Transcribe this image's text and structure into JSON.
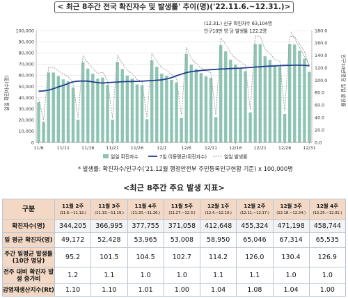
{
  "banner": {
    "title": "< 최근 8주간 전국 확진자수 및 발생률' 추이(명)('22.11.6.~12.31.)>"
  },
  "chart_data": {
    "type": "bar",
    "left_axis": {
      "label": "일일 확진자수(명)",
      "ticks": [
        "0",
        "10,000",
        "20,000",
        "30,000",
        "40,000",
        "50,000",
        "60,000",
        "70,000",
        "80,000",
        "90,000",
        "100,000"
      ],
      "ylim": [
        0,
        100000
      ]
    },
    "right_axis": {
      "label": "인구10만명당 일일 발생률",
      "ticks": [
        "0.0",
        "20.0",
        "40.0",
        "60.0",
        "80.0",
        "100.0",
        "120.0",
        "140.0",
        "160.0",
        "180.0"
      ],
      "ylim": [
        0,
        180
      ]
    },
    "x_tick_labels": [
      "11/6",
      "11/11",
      "11/16",
      "11/21",
      "11/26",
      "12/1",
      "12/6",
      "12/11",
      "12/16",
      "12/21",
      "12/26",
      "12/31"
    ],
    "x_tick_index": [
      0,
      5,
      10,
      15,
      20,
      25,
      30,
      35,
      40,
      45,
      50,
      55
    ],
    "bars_daily_cases": [
      36000,
      18500,
      62500,
      62500,
      59200,
      56400,
      54700,
      49000,
      20200,
      71500,
      66000,
      61400,
      57000,
      58000,
      51500,
      20300,
      72000,
      65600,
      59700,
      57000,
      51800,
      51000,
      20800,
      73500,
      67600,
      61500,
      59500,
      56000,
      53500,
      22000,
      79000,
      69500,
      65600,
      62000,
      59000,
      57800,
      22600,
      86900,
      81500,
      74000,
      69500,
      66700,
      63600,
      26800,
      88000,
      88000,
      77000,
      73800,
      68500,
      67500,
      25500,
      88000,
      87500,
      82000,
      75000,
      63104
    ],
    "line_7day_avg": [
      45800,
      46000,
      46800,
      48000,
      49600,
      51000,
      52600,
      54200,
      54800,
      54900,
      54800,
      54100,
      53400,
      53100,
      53400,
      53700,
      54000,
      54300,
      54400,
      54500,
      54600,
      54700,
      55000,
      55300,
      55600,
      55900,
      56800,
      57900,
      59600,
      61000,
      62400,
      63300,
      63800,
      64300,
      64700,
      65000,
      65300,
      65600,
      65800,
      66000,
      66200,
      66400,
      66700,
      67000,
      67400,
      67600,
      68000,
      68200,
      68400,
      68600,
      68800,
      68900,
      69000,
      69000,
      68900,
      68500
    ],
    "line_daily_rate": [
      70.0,
      36.0,
      121.0,
      121.0,
      115.0,
      110.0,
      106.0,
      95.0,
      39.0,
      139.0,
      128.0,
      119.0,
      111.0,
      113.0,
      100.0,
      39.0,
      140.0,
      127.0,
      116.0,
      111.0,
      101.0,
      99.0,
      40.0,
      143.0,
      131.0,
      120.0,
      116.0,
      109.0,
      104.0,
      43.0,
      153.0,
      135.0,
      127.0,
      120.0,
      115.0,
      112.0,
      44.0,
      168.0,
      158.0,
      144.0,
      135.0,
      130.0,
      124.0,
      52.0,
      171.0,
      171.0,
      150.0,
      143.0,
      133.0,
      131.0,
      50.0,
      171.0,
      170.0,
      159.0,
      146.0,
      122.2
    ],
    "series": [
      {
        "name": "일일 확진자수",
        "color": "#8ec4b4"
      },
      {
        "name": "7일 이동평균(확진자수)",
        "color": "#1f3d8c"
      },
      {
        "name": "일일 발생률",
        "color": "#999999"
      }
    ],
    "annotation": {
      "line1": "(12.31.) 신규 확진자수 63,104명",
      "line2": "인구10만 명 당 발생률 122.2명"
    }
  },
  "footnote": "* 발생률: 확진자수/인구수('21.12월 행정안전부 주민등록인구현황 기준) x 100,000명",
  "table": {
    "title": "<최근 8주간 주요 발생 지표>",
    "corner": "구분",
    "columns": [
      {
        "label": "11월 2주",
        "sub": "(11.6.~11.12.)"
      },
      {
        "label": "11월 3주",
        "sub": "(11.13.~11.19.)"
      },
      {
        "label": "11월 4주",
        "sub": "(11.20.~11.26.)"
      },
      {
        "label": "11월 5주",
        "sub": "(11.27.~12.3.)"
      },
      {
        "label": "12월 1주",
        "sub": "(12.4.~12.10.)"
      },
      {
        "label": "12월 2주",
        "sub": "(12.11.~12.17.)"
      },
      {
        "label": "12월 3주",
        "sub": "(12.18.~12.24.)"
      },
      {
        "label": "12월 4주",
        "sub": "(12.25.~12.31.)"
      }
    ],
    "rows": [
      {
        "label": "확진자수(명)",
        "values": [
          "344,205",
          "366,995",
          "377,755",
          "371,058",
          "412,648",
          "455,324",
          "471,198",
          "458,744"
        ]
      },
      {
        "label": "일 평균 확진자(명)",
        "values": [
          "49,172",
          "52,428",
          "53,965",
          "53,008",
          "58,950",
          "65,046",
          "67,314",
          "65,535"
        ]
      },
      {
        "label": "주간 일평균 발생률(10만 명당)",
        "values": [
          "95.2",
          "101.5",
          "104.5",
          "102.7",
          "114.2",
          "126.0",
          "130.4",
          "126.9"
        ]
      },
      {
        "label": "전주 대비 확진자 발생 증가비",
        "values": [
          "1.2",
          "1.1",
          "1.0",
          "1.0",
          "1.1",
          "1.1",
          "1.0",
          "1.0"
        ]
      },
      {
        "label": "감염재생산지수(Rt)",
        "values": [
          "1.10",
          "1.10",
          "1.01",
          "1.00",
          "1.04",
          "1.08",
          "1.04",
          "1.00"
        ]
      }
    ]
  }
}
